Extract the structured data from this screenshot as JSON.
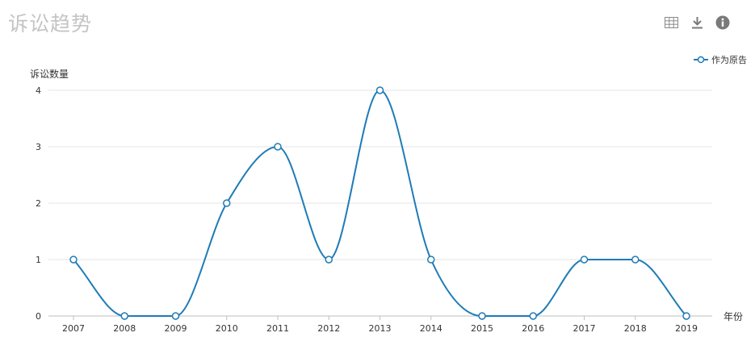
{
  "header": {
    "title": "诉讼趋势",
    "icons": [
      "table-icon",
      "download-icon",
      "info-icon"
    ]
  },
  "colors": {
    "series": "#1f7bb6",
    "grid": "#e6e6e6",
    "axis": "#bfbfbf",
    "title": "#c4c4c4"
  },
  "chart_data": {
    "type": "line",
    "title": "诉讼趋势",
    "ylabel": "诉讼数量",
    "xlabel": "年份",
    "ylim": [
      0,
      4
    ],
    "yticks": [
      0,
      1,
      2,
      3,
      4
    ],
    "categories": [
      "2007",
      "2008",
      "2009",
      "2010",
      "2011",
      "2012",
      "2013",
      "2014",
      "2015",
      "2016",
      "2017",
      "2018",
      "2019"
    ],
    "series": [
      {
        "name": "作为原告",
        "values": [
          1,
          0,
          0,
          2,
          3,
          1,
          4,
          1,
          0,
          0,
          1,
          1,
          0
        ]
      }
    ],
    "grid": true,
    "legend_position": "top-right",
    "smooth": true
  }
}
